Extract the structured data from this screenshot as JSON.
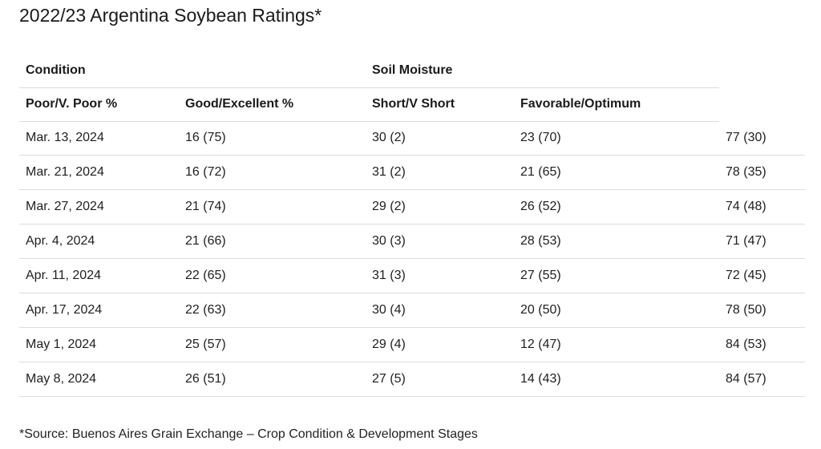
{
  "title": "2022/23 Argentina Soybean Ratings*",
  "table": {
    "group_headers": [
      "Condition",
      "",
      "Soil Moisture",
      "",
      ""
    ],
    "column_headers": [
      "Poor/V. Poor %",
      "Good/Excellent %",
      "Short/V Short",
      "Favorable/Optimum",
      ""
    ],
    "rows": [
      [
        "Mar. 13, 2024",
        "16 (75)",
        "30 (2)",
        "23 (70)",
        "77 (30)"
      ],
      [
        "Mar. 21, 2024",
        "16 (72)",
        "31 (2)",
        "21 (65)",
        "78 (35)"
      ],
      [
        "Mar. 27, 2024",
        "21 (74)",
        "29 (2)",
        "26 (52)",
        "74 (48)"
      ],
      [
        "Apr. 4, 2024",
        "21 (66)",
        "30 (3)",
        "28 (53)",
        "71 (47)"
      ],
      [
        "Apr. 11, 2024",
        "22 (65)",
        "31 (3)",
        "27 (55)",
        "72 (45)"
      ],
      [
        "Apr. 17, 2024",
        "22 (63)",
        "30 (4)",
        "20 (50)",
        "78 (50)"
      ],
      [
        "May 1, 2024",
        "25 (57)",
        "29 (4)",
        "12 (47)",
        "84 (53)"
      ],
      [
        "May 8, 2024",
        "26 (51)",
        "27 (5)",
        "14 (43)",
        "84 (57)"
      ]
    ]
  },
  "footnote": "*Source: Buenos Aires Grain Exchange – Crop Condition & Development Stages",
  "colors": {
    "divider": "#dcdcdc",
    "text": "#1f1f1f"
  }
}
